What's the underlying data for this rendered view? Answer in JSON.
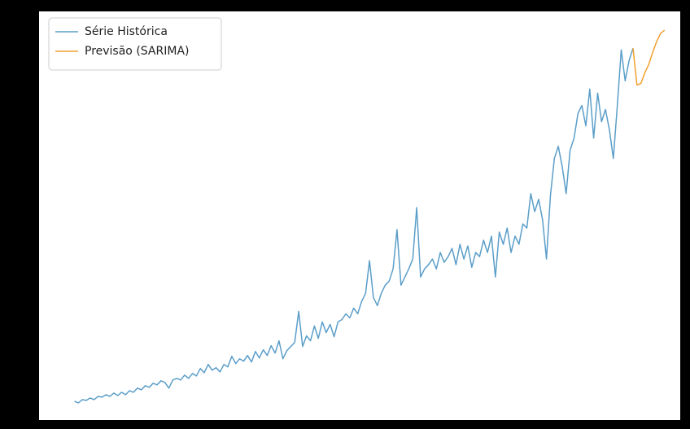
{
  "chart_data": {
    "type": "line",
    "series": [
      {
        "name": "Série Histórica",
        "color": "#5b9ec9",
        "x": [
          0,
          1,
          2,
          3,
          4,
          5,
          6,
          7,
          8,
          9,
          10,
          11,
          12,
          13,
          14,
          15,
          16,
          17,
          18,
          19,
          20,
          21,
          22,
          23,
          24,
          25,
          26,
          27,
          28,
          29,
          30,
          31,
          32,
          33,
          34,
          35,
          36,
          37,
          38,
          39,
          40,
          41,
          42,
          43,
          44,
          45,
          46,
          47,
          48,
          49,
          50,
          51,
          52,
          53,
          54,
          55,
          56,
          57,
          58,
          59,
          60,
          61,
          62,
          63,
          64,
          65,
          66,
          67,
          68,
          69,
          70,
          71,
          72,
          73,
          74,
          75,
          76,
          77,
          78,
          79,
          80,
          81,
          82,
          83,
          84,
          85,
          86,
          87,
          88,
          89,
          90,
          91,
          92,
          93,
          94,
          95,
          96,
          97,
          98,
          99,
          100,
          101,
          102,
          103,
          104,
          105,
          106,
          107,
          108,
          109,
          110,
          111,
          112,
          113,
          114,
          115,
          116,
          117,
          118,
          119,
          120,
          121,
          122,
          123,
          124,
          125,
          126,
          127,
          128,
          129,
          130,
          131,
          132,
          133,
          134,
          135,
          136,
          137,
          138,
          139,
          140,
          141,
          142
        ],
        "values": [
          4.6,
          4.2,
          5,
          4.8,
          5.4,
          5,
          5.8,
          5.6,
          6.2,
          5.8,
          6.6,
          6,
          6.8,
          6.2,
          7.2,
          6.8,
          7.8,
          7.4,
          8.4,
          8,
          9,
          8.6,
          9.6,
          9.2,
          7.8,
          9.8,
          10.2,
          9.8,
          11,
          10.2,
          11.4,
          10.8,
          12.6,
          11.6,
          13.6,
          12.2,
          12.8,
          11.8,
          13.6,
          13,
          15.6,
          13.8,
          15,
          14.4,
          15.8,
          14.2,
          16.8,
          15.2,
          17.2,
          15.8,
          18.2,
          16.4,
          19.4,
          15,
          17,
          18,
          19,
          26.6,
          18,
          20.6,
          19.4,
          23,
          20,
          24,
          21.4,
          23.4,
          20.4,
          24,
          24.6,
          26,
          25,
          27.4,
          26,
          29,
          31,
          39,
          30,
          28,
          31,
          33,
          34,
          37,
          46.6,
          33,
          35,
          37,
          39.4,
          52,
          35,
          37,
          38,
          39.4,
          37,
          41,
          38.6,
          40,
          42,
          38,
          43,
          39.4,
          42.6,
          37.4,
          41,
          40,
          44,
          41,
          45,
          35,
          46,
          43,
          47,
          41,
          45,
          43,
          48,
          47,
          55.4,
          51,
          54,
          49,
          39.4,
          55,
          64,
          67,
          62,
          55.4,
          66,
          69,
          75,
          77,
          72,
          81,
          69,
          80,
          73,
          76,
          71,
          64,
          77,
          90.6,
          83,
          88,
          91
        ]
      },
      {
        "name": "Previsão (SARIMA)",
        "color": "#f0a030",
        "x": [
          142,
          143,
          144,
          145,
          146,
          147,
          148,
          149,
          150
        ],
        "values": [
          91,
          82,
          82.4,
          85,
          87,
          90,
          92.6,
          94.6,
          95.4
        ]
      }
    ],
    "xlim": [
      -9,
      154
    ],
    "ylim": [
      0,
      100
    ],
    "legend": "upper left"
  }
}
